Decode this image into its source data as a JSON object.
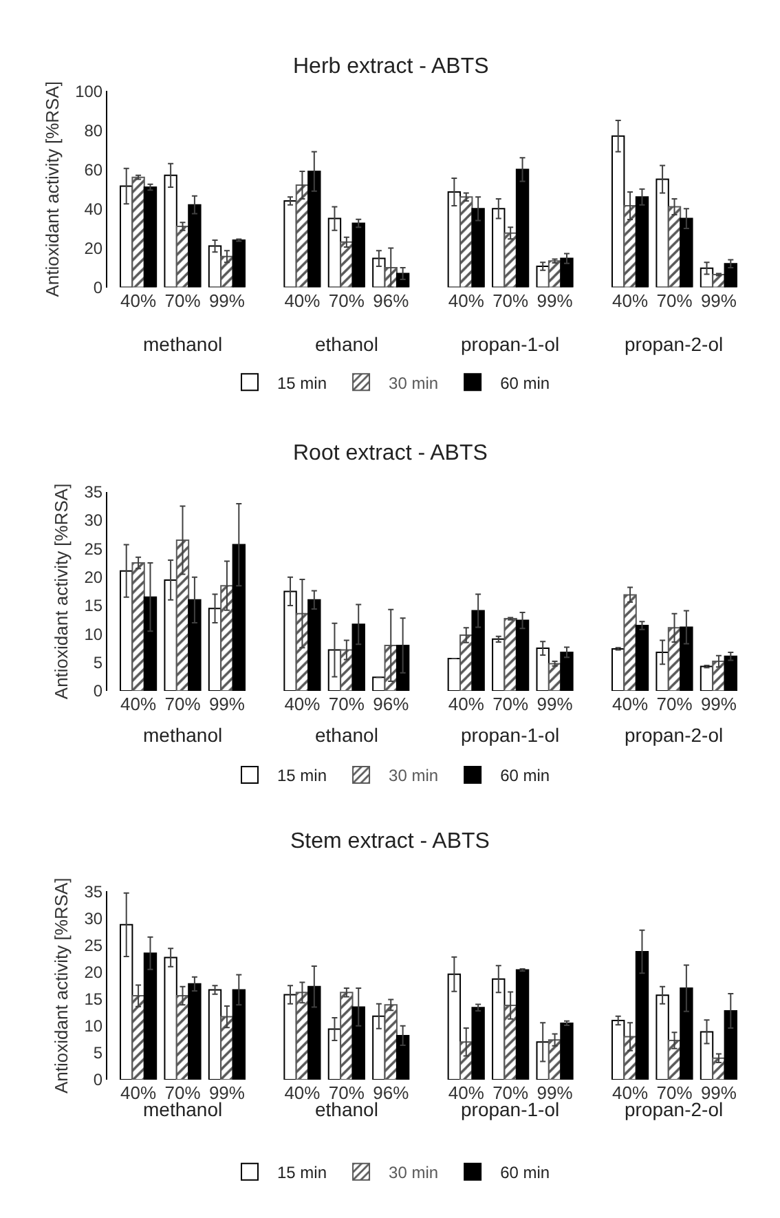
{
  "chart_data": [
    {
      "type": "bar",
      "title": "Herb extract - ABTS",
      "ylabel": "Antioxidant activity [%RSA]",
      "categories": [
        "40%",
        "70%",
        "99%",
        "40%",
        "70%",
        "96%",
        "40%",
        "70%",
        "99%",
        "40%",
        "70%",
        "99%"
      ],
      "annotations": [
        "methanol",
        "ethanol",
        "propan-1-ol",
        "propan-2-ol"
      ],
      "ylim": [
        0,
        100
      ],
      "yticks": [
        0,
        20,
        40,
        60,
        80,
        100
      ],
      "legend": "bottom",
      "series": [
        {
          "name": "15 min",
          "color": "#ffffff",
          "values": [
            51.5,
            57,
            21,
            44,
            35,
            14.7,
            48.5,
            40,
            10.7,
            77,
            55,
            9.7
          ],
          "errors": [
            9,
            6,
            3,
            2,
            6,
            4,
            7,
            5,
            2,
            8,
            7,
            3
          ]
        },
        {
          "name": "30 min",
          "color": "#595959",
          "values": [
            56,
            31,
            15.7,
            52,
            23,
            10,
            46,
            27.6,
            13.4,
            41.5,
            41,
            6.5
          ],
          "errors": [
            1,
            2,
            3,
            7,
            2.5,
            10,
            2,
            3,
            1,
            7,
            4,
            0.5
          ]
        },
        {
          "name": "60 min",
          "color": "#000000",
          "values": [
            51,
            42,
            24,
            59,
            32.6,
            7,
            40,
            60,
            14.7,
            46,
            35,
            12
          ],
          "errors": [
            1.5,
            4.5,
            0.5,
            10,
            2,
            3,
            6,
            6,
            2.5,
            4,
            5,
            2
          ]
        }
      ]
    },
    {
      "type": "bar",
      "title": "Root extract - ABTS",
      "ylabel": "Antioxidant activity [%RSA]",
      "categories": [
        "40%",
        "70%",
        "99%",
        "40%",
        "70%",
        "96%",
        "40%",
        "70%",
        "99%",
        "40%",
        "70%",
        "99%"
      ],
      "annotations": [
        "methanol",
        "ethanol",
        "propan-1-ol",
        "propan-2-ol"
      ],
      "ylim": [
        0,
        35
      ],
      "yticks": [
        0,
        5,
        10,
        15,
        20,
        25,
        30,
        35
      ],
      "legend": "bottom",
      "series": [
        {
          "name": "15 min",
          "color": "#ffffff",
          "values": [
            21.1,
            19.5,
            14.5,
            17.5,
            7.2,
            2.4,
            5.7,
            9.1,
            7.5,
            7.4,
            6.8,
            4.3
          ],
          "errors": [
            4.6,
            3.5,
            2.5,
            2.5,
            4.7,
            0,
            0,
            0.5,
            1.2,
            0.2,
            2.1,
            0.2
          ]
        },
        {
          "name": "30 min",
          "color": "#595959",
          "values": [
            22.5,
            26.5,
            18.5,
            13.6,
            7.2,
            8,
            9.8,
            12.7,
            4.8,
            16.9,
            11.1,
            5.2
          ],
          "errors": [
            1,
            6,
            4.3,
            6,
            1.7,
            6.3,
            1.3,
            0.2,
            0.4,
            1.3,
            2.5,
            1
          ]
        },
        {
          "name": "60 min",
          "color": "#000000",
          "values": [
            16.5,
            16,
            25.7,
            16,
            11.7,
            8,
            14.1,
            12.4,
            6.8,
            11.5,
            11.2,
            6.1
          ],
          "errors": [
            6,
            4,
            7.2,
            1.6,
            3.5,
            4.8,
            2.9,
            1.4,
            0.9,
            0.7,
            2.9,
            0.7
          ]
        }
      ]
    },
    {
      "type": "bar",
      "title": "Stem extract - ABTS",
      "ylabel": "Antioxidant activity [%RSA]",
      "categories": [
        "40%",
        "70%",
        "99%",
        "40%",
        "70%",
        "96%",
        "40%",
        "70%",
        "99%",
        "40%",
        "70%",
        "99%"
      ],
      "annotations": [
        "methanol",
        "ethanol",
        "propan-1-ol",
        "propan-2-ol"
      ],
      "ylim": [
        0,
        35
      ],
      "yticks": [
        0,
        5,
        10,
        15,
        20,
        25,
        30,
        35
      ],
      "legend": "bottom",
      "series": [
        {
          "name": "15 min",
          "color": "#ffffff",
          "values": [
            28.8,
            22.7,
            16.7,
            15.8,
            9.4,
            11.8,
            19.6,
            18.7,
            7,
            11,
            15.7,
            8.9
          ],
          "errors": [
            5.9,
            1.7,
            0.8,
            1.7,
            2.1,
            2.3,
            3.2,
            2.5,
            3.6,
            0.8,
            1.6,
            2.2
          ]
        },
        {
          "name": "30 min",
          "color": "#595959",
          "values": [
            15.6,
            15.6,
            11.7,
            16.2,
            16.2,
            13.9,
            7,
            13.8,
            7.4,
            8,
            7.3,
            4
          ],
          "errors": [
            2,
            1.7,
            2,
            1.9,
            0.8,
            1,
            2.6,
            2.5,
            1.1,
            2.6,
            1.5,
            0.8
          ]
        },
        {
          "name": "60 min",
          "color": "#000000",
          "values": [
            23.5,
            17.8,
            16.7,
            17.3,
            13.5,
            8.2,
            13.4,
            20.4,
            10.5,
            23.8,
            17,
            12.8
          ],
          "errors": [
            3,
            1.3,
            2.8,
            3.8,
            3.5,
            1.8,
            0.6,
            0.2,
            0.4,
            4,
            4.3,
            3.2
          ]
        }
      ]
    }
  ]
}
